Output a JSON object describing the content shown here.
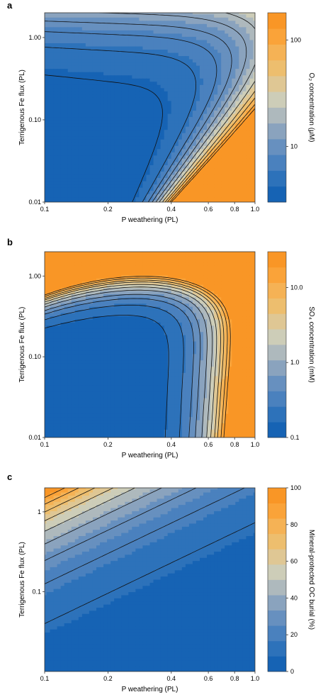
{
  "figure": {
    "palette": [
      "#1663B4",
      "#2D72BA",
      "#4A81BE",
      "#6790BF",
      "#8AA3BE",
      "#AEB9BD",
      "#CDCDB8",
      "#DFC794",
      "#EDBE6E",
      "#F5B255",
      "#FAA339",
      "#F99626"
    ],
    "line_color": "#111111",
    "panels": [
      {
        "label": "a",
        "xlabel": "P weathering (PL)",
        "ylabel": "Terrigenous Fe flux (PL)",
        "colorbar_label": "O₂ concentration (μM)",
        "colorbar_ticks": [
          "100",
          "10"
        ]
      },
      {
        "label": "b",
        "xlabel": "P weathering (PL)",
        "ylabel": "Terrigenous Fe flux (PL)",
        "colorbar_label": "SO₄ concentration (mM)",
        "colorbar_ticks": [
          "10.0",
          "1.0",
          "0.1"
        ]
      },
      {
        "label": "c",
        "xlabel": "P weathering (PL)",
        "ylabel": "Terrigenous Fe flux (PL)",
        "colorbar_label": "Mineral-protected OC burial (%)",
        "colorbar_ticks": [
          "100",
          "80",
          "60",
          "40",
          "20",
          "0"
        ]
      }
    ]
  },
  "chart_data": [
    {
      "type": "heatmap",
      "title": "",
      "xlabel": "P weathering (PL)",
      "ylabel": "Terrigenous Fe flux (PL)",
      "x_scale": "log",
      "y_scale": "log",
      "xlim": [
        0.1,
        1.0
      ],
      "ylim": [
        0.01,
        2.0
      ],
      "x_ticks": [
        0.1,
        0.2,
        0.4,
        0.6,
        0.8,
        1.0
      ],
      "x_tick_labels": [
        "0.1",
        "0.2",
        "0.4",
        "0.6",
        "0.8",
        "1.0"
      ],
      "y_ticks": [
        0.01,
        0.1,
        1.0
      ],
      "y_tick_labels": [
        "0.01",
        "0.10",
        "1.00"
      ],
      "colorbar": {
        "label": "O₂ concentration (μM)",
        "scale": "log",
        "range": [
          3,
          180
        ],
        "ticks": [
          10,
          100
        ]
      },
      "contour_levels": [
        4,
        5.5,
        7.5,
        10,
        14,
        20,
        30,
        45,
        65,
        100,
        140
      ],
      "z_samples": [
        {
          "x": 0.1,
          "y": 0.01,
          "z": 3.2
        },
        {
          "x": 0.3,
          "y": 0.01,
          "z": 5.5
        },
        {
          "x": 0.5,
          "y": 0.01,
          "z": 11
        },
        {
          "x": 0.7,
          "y": 0.01,
          "z": 55
        },
        {
          "x": 1.0,
          "y": 0.01,
          "z": 150
        },
        {
          "x": 0.1,
          "y": 0.1,
          "z": 4.0
        },
        {
          "x": 0.5,
          "y": 0.1,
          "z": 13
        },
        {
          "x": 1.0,
          "y": 0.1,
          "z": 160
        },
        {
          "x": 0.1,
          "y": 1.0,
          "z": 13
        },
        {
          "x": 0.5,
          "y": 1.0,
          "z": 35
        },
        {
          "x": 0.1,
          "y": 2.0,
          "z": 45
        },
        {
          "x": 1.0,
          "y": 2.0,
          "z": 180
        }
      ]
    },
    {
      "type": "heatmap",
      "title": "",
      "xlabel": "P weathering (PL)",
      "ylabel": "Terrigenous Fe flux (PL)",
      "x_scale": "log",
      "y_scale": "log",
      "xlim": [
        0.1,
        1.0
      ],
      "ylim": [
        0.01,
        2.0
      ],
      "x_ticks": [
        0.1,
        0.2,
        0.4,
        0.6,
        0.8,
        1.0
      ],
      "x_tick_labels": [
        "0.1",
        "0.2",
        "0.4",
        "0.6",
        "0.8",
        "1.0"
      ],
      "y_ticks": [
        0.01,
        0.1,
        1.0
      ],
      "y_tick_labels": [
        "0.01",
        "0.10",
        "1.00"
      ],
      "colorbar": {
        "label": "SO₄ concentration (mM)",
        "scale": "log",
        "range": [
          0.1,
          30
        ],
        "ticks": [
          0.1,
          1.0,
          10.0
        ]
      },
      "contour_levels": [
        0.16,
        0.25,
        0.4,
        0.6,
        1.0,
        1.6,
        2.5,
        4,
        6,
        10,
        16
      ],
      "z_samples": [
        {
          "x": 0.1,
          "y": 0.01,
          "z": 0.1
        },
        {
          "x": 0.5,
          "y": 0.01,
          "z": 0.11
        },
        {
          "x": 0.7,
          "y": 0.01,
          "z": 2.0
        },
        {
          "x": 1.0,
          "y": 0.01,
          "z": 20
        },
        {
          "x": 0.3,
          "y": 0.3,
          "z": 0.2
        },
        {
          "x": 0.1,
          "y": 1.0,
          "z": 1.6
        },
        {
          "x": 0.1,
          "y": 2.0,
          "z": 25
        },
        {
          "x": 1.0,
          "y": 2.0,
          "z": 28
        }
      ]
    },
    {
      "type": "heatmap",
      "title": "",
      "xlabel": "P weathering (PL)",
      "ylabel": "Terrigenous Fe flux (PL)",
      "x_scale": "log",
      "y_scale": "log",
      "xlim": [
        0.1,
        1.0
      ],
      "ylim": [
        0.01,
        2.0
      ],
      "x_ticks": [
        0.1,
        0.2,
        0.4,
        0.6,
        0.8,
        1.0
      ],
      "x_tick_labels": [
        "0.1",
        "0.2",
        "0.4",
        "0.6",
        "0.8",
        "1.0"
      ],
      "y_ticks": [
        0.1,
        1.0
      ],
      "y_tick_labels": [
        "0.1",
        "1"
      ],
      "colorbar": {
        "label": "Mineral-protected OC burial (%)",
        "scale": "linear",
        "range": [
          0,
          100
        ],
        "ticks": [
          0,
          20,
          40,
          60,
          80,
          100
        ]
      },
      "contour_levels": [
        10,
        20,
        30,
        40,
        50,
        60,
        70,
        80,
        90
      ],
      "z_samples": [
        {
          "x": 0.1,
          "y": 0.01,
          "z": 4
        },
        {
          "x": 1.0,
          "y": 0.01,
          "z": 0
        },
        {
          "x": 0.1,
          "y": 0.1,
          "z": 25
        },
        {
          "x": 1.0,
          "y": 0.1,
          "z": 2
        },
        {
          "x": 0.1,
          "y": 1.0,
          "z": 82
        },
        {
          "x": 1.0,
          "y": 1.0,
          "z": 20
        },
        {
          "x": 0.1,
          "y": 2.0,
          "z": 100
        },
        {
          "x": 1.0,
          "y": 2.0,
          "z": 28
        }
      ]
    }
  ]
}
